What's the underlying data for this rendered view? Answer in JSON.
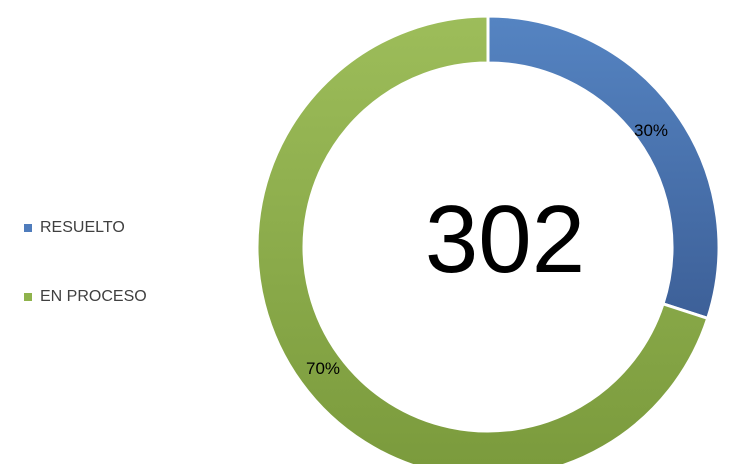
{
  "chart_data": {
    "type": "pie",
    "variant": "donut",
    "center_label": "302",
    "categories": [
      "RESUELTO",
      "EN PROCESO"
    ],
    "values": [
      30,
      70
    ],
    "data_labels": [
      "30%",
      "70%"
    ],
    "colors": {
      "RESUELTO": [
        "#5584c2",
        "#3d6098"
      ],
      "EN PROCESO": [
        "#9dbd5a",
        "#7a9a3c"
      ]
    },
    "legend_placement": "left",
    "start_angle_deg": 0,
    "direction": "clockwise"
  }
}
